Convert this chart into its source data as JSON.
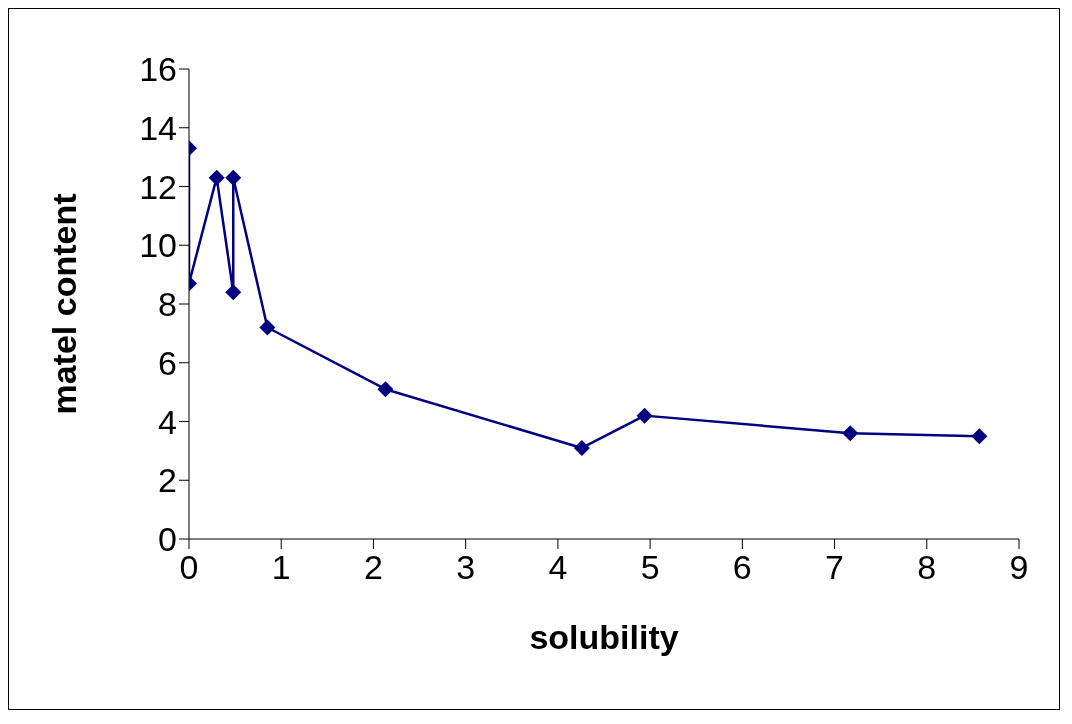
{
  "chart_data": {
    "type": "line",
    "xlabel": "solubility",
    "ylabel": "matel content",
    "x": [
      0,
      0,
      0.3,
      0.48,
      0.48,
      0.85,
      2.13,
      4.26,
      4.94,
      7.17,
      8.57
    ],
    "series": [
      {
        "color": "#000080",
        "values": [
          13.3,
          8.7,
          12.3,
          8.4,
          12.3,
          7.2,
          5.1,
          3.1,
          4.2,
          3.6,
          3.5
        ]
      }
    ],
    "xlim": [
      0,
      9
    ],
    "xticks": [
      0,
      1,
      2,
      3,
      4,
      5,
      6,
      7,
      8,
      9
    ],
    "ylim": [
      0,
      16
    ],
    "yticks": [
      0,
      2,
      4,
      6,
      8,
      10,
      12,
      14,
      16
    ],
    "marker": "diamond",
    "line_style": "solid"
  }
}
